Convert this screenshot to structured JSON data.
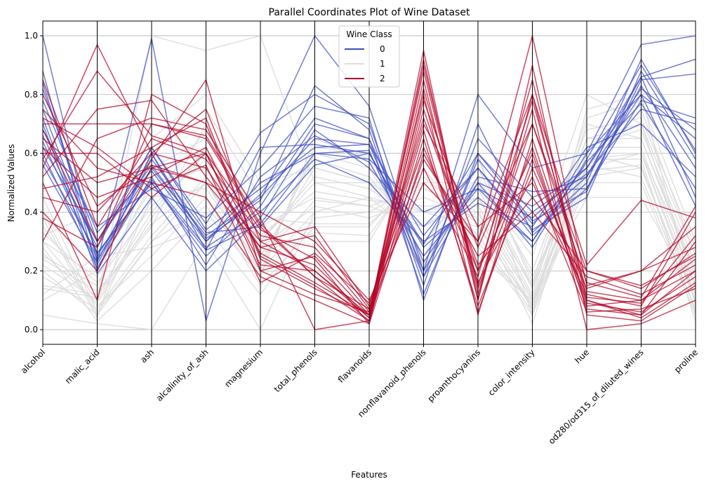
{
  "chart_data": {
    "type": "parallel_coordinates",
    "title": "Parallel Coordinates Plot of Wine Dataset",
    "xlabel": "Features",
    "ylabel": "Normalized Values",
    "ylim": [
      -0.05,
      1.05
    ],
    "yticks": [
      "0.0",
      "0.2",
      "0.4",
      "0.6",
      "0.8",
      "1.0"
    ],
    "grid": true,
    "legend": {
      "title": "Wine Class",
      "placement": "top-center"
    },
    "features": [
      "alcohol",
      "malic_acid",
      "ash",
      "alcalinity_of_ash",
      "magnesium",
      "total_phenols",
      "flavanoids",
      "nonflavanoid_phenols",
      "proanthocyanins",
      "color_intensity",
      "hue",
      "od280/od315_of_diluted_wines",
      "proline"
    ],
    "series": [
      {
        "name": "0",
        "color": "#3b4cc0",
        "lines": [
          [
            1.0,
            0.23,
            0.99,
            0.03,
            0.6,
            1.0,
            0.76,
            0.2,
            0.8,
            0.55,
            0.6,
            0.97,
            1.0
          ],
          [
            0.88,
            0.2,
            0.6,
            0.27,
            0.62,
            0.63,
            0.6,
            0.29,
            0.6,
            0.37,
            0.47,
            0.85,
            0.87
          ],
          [
            0.84,
            0.25,
            0.55,
            0.32,
            0.45,
            0.65,
            0.63,
            0.32,
            0.55,
            0.32,
            0.48,
            0.78,
            0.72
          ],
          [
            0.82,
            0.3,
            0.62,
            0.36,
            0.67,
            0.8,
            0.7,
            0.18,
            0.65,
            0.45,
            0.52,
            0.86,
            0.92
          ],
          [
            0.78,
            0.33,
            0.54,
            0.3,
            0.5,
            0.6,
            0.58,
            0.4,
            0.48,
            0.38,
            0.55,
            0.82,
            0.68
          ],
          [
            0.75,
            0.26,
            0.5,
            0.25,
            0.42,
            0.7,
            0.65,
            0.23,
            0.5,
            0.28,
            0.58,
            0.9,
            0.61
          ],
          [
            0.72,
            0.22,
            0.58,
            0.33,
            0.35,
            0.56,
            0.6,
            0.28,
            0.45,
            0.3,
            0.6,
            0.8,
            0.65
          ],
          [
            0.7,
            0.19,
            0.45,
            0.2,
            0.38,
            0.68,
            0.55,
            0.35,
            0.55,
            0.34,
            0.45,
            0.88,
            0.58
          ],
          [
            0.68,
            0.35,
            0.48,
            0.38,
            0.55,
            0.76,
            0.72,
            0.1,
            0.6,
            0.4,
            0.53,
            0.75,
            0.7
          ],
          [
            0.66,
            0.28,
            0.62,
            0.34,
            0.48,
            0.62,
            0.63,
            0.2,
            0.52,
            0.47,
            0.48,
            0.83,
            0.55
          ],
          [
            0.64,
            0.24,
            0.51,
            0.28,
            0.4,
            0.58,
            0.5,
            0.3,
            0.43,
            0.35,
            0.62,
            0.7,
            0.52
          ],
          [
            0.62,
            0.3,
            0.56,
            0.31,
            0.44,
            0.83,
            0.68,
            0.15,
            0.7,
            0.33,
            0.5,
            0.92,
            0.6
          ],
          [
            0.6,
            0.21,
            0.52,
            0.22,
            0.52,
            0.66,
            0.57,
            0.25,
            0.48,
            0.3,
            0.57,
            0.77,
            0.48
          ],
          [
            0.58,
            0.26,
            0.5,
            0.27,
            0.36,
            0.6,
            0.61,
            0.18,
            0.5,
            0.42,
            0.55,
            0.86,
            0.45
          ],
          [
            0.56,
            0.23,
            0.6,
            0.3,
            0.46,
            0.72,
            0.65,
            0.12,
            0.58,
            0.36,
            0.52,
            0.8,
            0.42
          ]
        ]
      },
      {
        "name": "1",
        "color": "#dddddd",
        "lines": [
          [
            0.35,
            0.1,
            0.4,
            0.6,
            0.3,
            0.5,
            0.45,
            0.3,
            0.4,
            0.1,
            0.55,
            0.6,
            0.2
          ],
          [
            0.2,
            0.05,
            0.3,
            0.5,
            0.2,
            0.4,
            0.4,
            0.4,
            0.35,
            0.08,
            0.6,
            0.55,
            0.1
          ],
          [
            0.25,
            0.15,
            0.5,
            0.55,
            0.25,
            0.55,
            0.5,
            0.5,
            0.5,
            0.15,
            0.65,
            0.7,
            0.15
          ],
          [
            0.3,
            0.08,
            0.25,
            0.45,
            0.15,
            0.35,
            0.35,
            0.55,
            0.3,
            0.05,
            0.5,
            0.5,
            0.05
          ],
          [
            0.15,
            0.12,
            0.35,
            0.7,
            0.35,
            0.45,
            0.42,
            0.35,
            0.45,
            0.12,
            0.7,
            0.65,
            0.18
          ],
          [
            0.4,
            0.05,
            0.45,
            0.48,
            0.22,
            0.6,
            0.55,
            0.25,
            0.55,
            0.18,
            0.55,
            0.75,
            0.25
          ],
          [
            0.1,
            0.2,
            0.55,
            0.65,
            0.4,
            0.3,
            0.3,
            0.6,
            0.25,
            0.1,
            0.45,
            0.45,
            0.12
          ],
          [
            0.28,
            0.03,
            0.2,
            0.4,
            0.18,
            0.65,
            0.58,
            0.2,
            0.6,
            0.05,
            0.75,
            0.8,
            0.08
          ],
          [
            0.22,
            0.1,
            1.0,
            0.95,
            1.0,
            0.5,
            0.5,
            0.4,
            0.45,
            0.15,
            0.65,
            0.65,
            0.2
          ],
          [
            0.18,
            0.07,
            0.32,
            0.52,
            0.28,
            0.42,
            0.38,
            0.45,
            0.38,
            0.08,
            0.58,
            0.58,
            0.03
          ],
          [
            0.33,
            0.16,
            0.42,
            0.58,
            0.3,
            0.52,
            0.48,
            0.35,
            0.48,
            0.14,
            0.62,
            0.68,
            0.22
          ],
          [
            0.12,
            0.25,
            0.28,
            0.35,
            0.12,
            0.38,
            0.4,
            0.5,
            0.32,
            0.06,
            0.52,
            0.55,
            0.1
          ],
          [
            0.38,
            0.04,
            0.6,
            0.75,
            0.45,
            0.58,
            0.52,
            0.3,
            0.52,
            0.2,
            0.68,
            0.72,
            0.28
          ],
          [
            0.26,
            0.09,
            0.38,
            0.62,
            0.32,
            0.47,
            0.44,
            0.42,
            0.42,
            0.11,
            0.62,
            0.62,
            0.14
          ],
          [
            0.3,
            0.18,
            0.48,
            0.55,
            0.26,
            0.33,
            0.32,
            0.58,
            0.28,
            0.09,
            0.56,
            0.52,
            0.07
          ],
          [
            0.45,
            0.06,
            0.3,
            0.42,
            0.2,
            0.62,
            0.6,
            0.22,
            0.58,
            0.16,
            0.72,
            0.78,
            0.3
          ],
          [
            0.05,
            0.02,
            0.0,
            0.3,
            0.0,
            0.4,
            0.45,
            0.4,
            0.4,
            0.02,
            0.6,
            0.6,
            0.1
          ],
          [
            0.32,
            0.4,
            0.65,
            0.8,
            0.5,
            0.55,
            0.5,
            0.3,
            0.5,
            0.25,
            0.8,
            0.7,
            0.25
          ],
          [
            0.24,
            0.13,
            0.36,
            0.5,
            0.24,
            0.44,
            0.42,
            0.48,
            0.4,
            0.1,
            0.58,
            0.6,
            0.12
          ],
          [
            0.14,
            0.11,
            0.44,
            0.68,
            0.38,
            0.36,
            0.36,
            0.52,
            0.36,
            0.07,
            0.54,
            0.56,
            0.06
          ]
        ]
      },
      {
        "name": "2",
        "color": "#b40426",
        "lines": [
          [
            0.55,
            0.97,
            0.6,
            0.75,
            0.3,
            0.2,
            0.05,
            0.95,
            0.1,
            0.8,
            0.1,
            0.05,
            0.3
          ],
          [
            0.5,
            0.1,
            0.8,
            0.7,
            0.25,
            0.15,
            0.03,
            0.75,
            0.2,
            0.6,
            0.08,
            0.1,
            0.2
          ],
          [
            0.65,
            0.5,
            0.55,
            0.5,
            0.4,
            0.3,
            0.1,
            0.5,
            0.3,
            1.0,
            0.15,
            0.2,
            0.35
          ],
          [
            0.6,
            0.6,
            0.45,
            0.6,
            0.2,
            0.25,
            0.05,
            0.9,
            0.15,
            0.7,
            0.2,
            0.15,
            0.25
          ],
          [
            0.7,
            0.7,
            0.7,
            0.65,
            0.35,
            0.18,
            0.07,
            0.7,
            0.35,
            0.5,
            0.12,
            0.08,
            0.4
          ],
          [
            0.45,
            0.4,
            0.6,
            0.55,
            0.28,
            0.22,
            0.04,
            0.85,
            0.1,
            0.9,
            0.05,
            0.03,
            0.15
          ],
          [
            0.75,
            0.55,
            0.5,
            0.45,
            0.18,
            0.1,
            0.02,
            0.6,
            0.25,
            0.4,
            0.18,
            0.12,
            0.22
          ],
          [
            0.85,
            0.35,
            0.65,
            0.58,
            0.32,
            0.28,
            0.06,
            0.8,
            0.05,
            0.65,
            0.09,
            0.06,
            0.18
          ],
          [
            0.4,
            0.2,
            0.55,
            0.6,
            0.22,
            0.2,
            0.04,
            0.92,
            0.12,
            0.75,
            0.0,
            0.02,
            0.1
          ],
          [
            0.3,
            0.65,
            0.72,
            0.68,
            0.38,
            0.0,
            0.03,
            0.65,
            0.08,
            0.55,
            0.14,
            0.2,
            0.28
          ],
          [
            0.62,
            0.45,
            0.52,
            0.62,
            0.26,
            0.16,
            0.05,
            0.55,
            0.18,
            0.85,
            0.11,
            0.09,
            0.32
          ],
          [
            0.52,
            0.75,
            0.78,
            0.52,
            0.3,
            0.35,
            0.08,
            0.72,
            0.22,
            0.45,
            0.2,
            0.14,
            0.26
          ],
          [
            0.68,
            0.3,
            0.58,
            0.85,
            0.2,
            0.12,
            0.06,
            0.88,
            0.14,
            0.62,
            0.07,
            0.05,
            0.2
          ],
          [
            0.58,
            0.88,
            0.66,
            0.6,
            0.34,
            0.24,
            0.02,
            0.78,
            0.28,
            0.7,
            0.16,
            0.11,
            0.42
          ],
          [
            0.48,
            0.52,
            0.62,
            0.72,
            0.24,
            0.14,
            0.05,
            0.68,
            0.06,
            0.58,
            0.1,
            0.04,
            0.16
          ],
          [
            0.72,
            0.62,
            0.48,
            0.56,
            0.16,
            0.26,
            0.09,
            0.62,
            0.2,
            0.78,
            0.13,
            0.1,
            0.24
          ],
          [
            0.38,
            0.28,
            0.7,
            0.66,
            0.36,
            0.18,
            0.03,
            0.82,
            0.16,
            0.52,
            0.06,
            0.07,
            0.14
          ],
          [
            0.8,
            0.42,
            0.56,
            0.5,
            0.28,
            0.32,
            0.07,
            0.58,
            0.3,
            0.8,
            0.22,
            0.44,
            0.38
          ]
        ]
      }
    ]
  }
}
